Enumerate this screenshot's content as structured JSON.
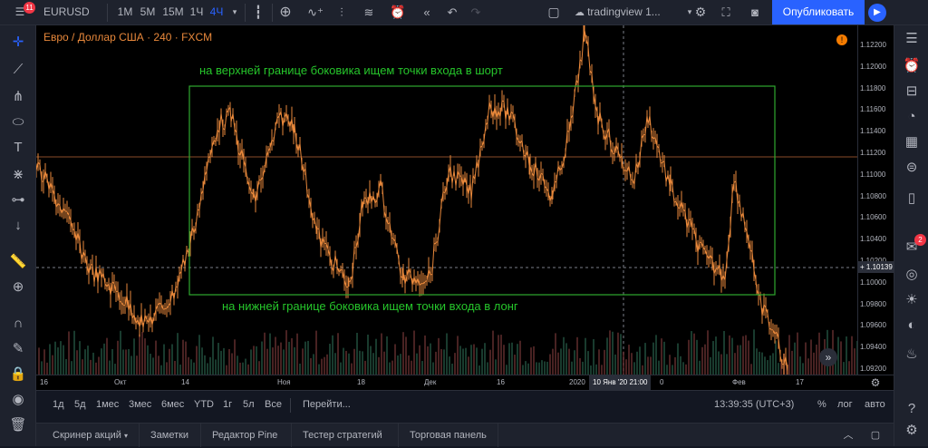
{
  "topbar": {
    "symbol": "EURUSD",
    "notification_count": "11",
    "intervals": [
      "1М",
      "5М",
      "15М",
      "1Ч",
      "4Ч"
    ],
    "layout_name": "tradingview 1...",
    "publish_label": "Опубликовать"
  },
  "chart": {
    "legend": "Евро / Доллар США · 240 · FXCM",
    "annotation_top": "на верхней границе боковика ищем точки входа в шорт",
    "annotation_bottom": "на нижней границе боковика ищем точки входа в лонг",
    "colors": {
      "price": "#e8883b",
      "box": "#2ea82e",
      "annotation": "#26c62b"
    }
  },
  "price_axis": {
    "labels": [
      "1.12200",
      "1.12000",
      "1.11800",
      "1.11600",
      "1.11400",
      "1.11200",
      "1.11000",
      "1.10800",
      "1.10600",
      "1.10400",
      "1.10200",
      "1.10000",
      "1.09800",
      "1.09600",
      "1.09400",
      "1.09200"
    ],
    "current_price": "1.10139"
  },
  "time_axis": {
    "labels": [
      "16",
      "Окт",
      "14",
      "Ноя",
      "18",
      "Дек",
      "16",
      "2020",
      "0",
      "Фев",
      "17"
    ],
    "crosshair_label": "10 Янв '20   21:00"
  },
  "range_bar": {
    "ranges": [
      "1д",
      "5д",
      "1мес",
      "3мес",
      "6мес",
      "YTD",
      "1г",
      "5л",
      "Все"
    ],
    "goto": "Перейти...",
    "clock": "13:39:35 (UTC+3)",
    "percent": "%",
    "log": "лог",
    "auto": "авто"
  },
  "bottom_tabs": [
    "Скринер акций",
    "Заметки",
    "Редактор Pine",
    "Тестер стратегий",
    "Торговая панель"
  ],
  "right_toolbar": {
    "alerts_badge": "2"
  }
}
